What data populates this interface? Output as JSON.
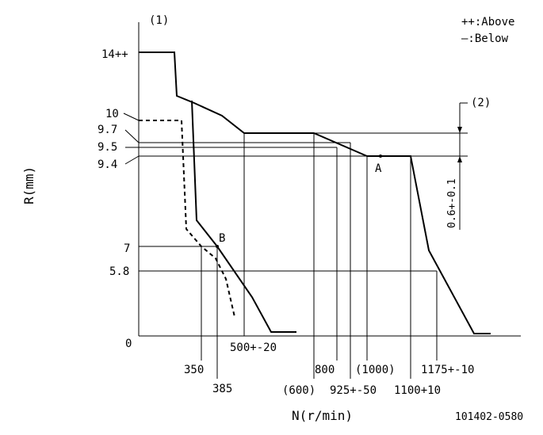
{
  "labels": {
    "marker_1": "(1)",
    "marker_2": "(2)",
    "legend_above": "++:Above",
    "legend_below": "—:Below",
    "y_axis_title": "R(mm)",
    "x_axis_title": "N(r/min)",
    "drawing_number": "101402-0580",
    "dim_label": "0.6+-0.1",
    "point_a": "A",
    "point_b": "B"
  },
  "y_ticks": [
    "14++",
    "10",
    "9.7",
    "9.5",
    "9.4",
    "7",
    "5.8",
    "0"
  ],
  "x_ticks": [
    "350",
    "385",
    "500+-20",
    "(600)",
    "800",
    "925+-50",
    "(1000)",
    "1100+10",
    "1175+-10"
  ]
}
